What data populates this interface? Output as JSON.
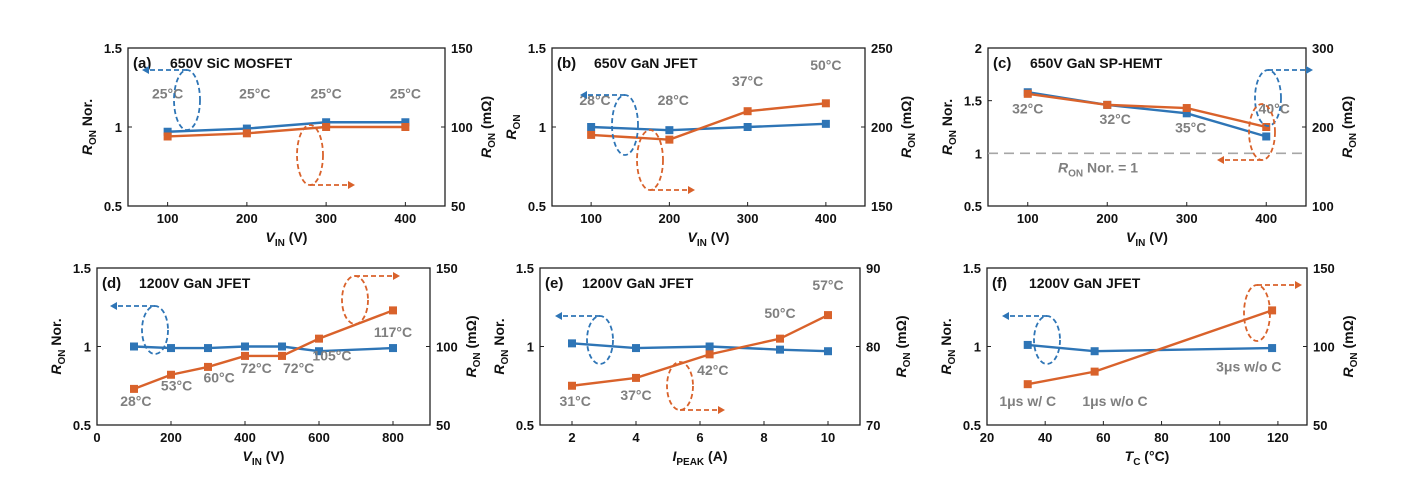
{
  "colors": {
    "left_series": "#2e75b6",
    "right_series": "#d9622b",
    "annotation": "#7f7f7f",
    "reference": "#a6a6a6"
  },
  "chart_data": [
    {
      "panel": "(a)",
      "title": "650V SiC MOSFET",
      "type": "line",
      "xlabel": "V",
      "xlabel_sub": "IN",
      "xlabel_tail": " (V)",
      "xlim": [
        50,
        450
      ],
      "xticks": [
        100,
        200,
        300,
        400
      ],
      "ylabel_left": "R",
      "ylabel_left_sub": "ON",
      "ylabel_left_tail": " Nor.",
      "ylim_left": [
        0.5,
        1.5
      ],
      "yticks_left": [
        "0.5",
        "1",
        "1.5"
      ],
      "ylabel_right": "R",
      "ylabel_right_sub": "ON",
      "ylabel_right_tail": " (mΩ)",
      "ylim_right": [
        50,
        150
      ],
      "yticks_right": [
        "50",
        "100",
        "150"
      ],
      "series_left": {
        "x": [
          100,
          200,
          300,
          400
        ],
        "y": [
          0.97,
          0.99,
          1.03,
          1.03
        ]
      },
      "series_right": {
        "x": [
          100,
          200,
          300,
          400
        ],
        "y": [
          94,
          96,
          100,
          100
        ]
      },
      "annotations": [
        {
          "text": "25°C",
          "x": 100,
          "y": 1.18
        },
        {
          "text": "25°C",
          "x": 210,
          "y": 1.18
        },
        {
          "text": "25°C",
          "x": 300,
          "y": 1.18
        },
        {
          "text": "25°C",
          "x": 400,
          "y": 1.18
        }
      ]
    },
    {
      "panel": "(b)",
      "title": "650V GaN JFET",
      "type": "line",
      "xlabel": "V",
      "xlabel_sub": "IN",
      "xlabel_tail": " (V)",
      "xlim": [
        50,
        450
      ],
      "xticks": [
        100,
        200,
        300,
        400
      ],
      "ylabel_left": "R",
      "ylabel_left_sub": "ON",
      "ylabel_left_tail": "",
      "ylim_left": [
        0.5,
        1.5
      ],
      "yticks_left": [
        "0.5",
        "1",
        "1.5"
      ],
      "ylabel_right": "R",
      "ylabel_right_sub": "ON",
      "ylabel_right_tail": " (mΩ)",
      "ylim_right": [
        150,
        250
      ],
      "yticks_right": [
        "150",
        "200",
        "250"
      ],
      "series_left": {
        "x": [
          100,
          200,
          300,
          400
        ],
        "y": [
          1.0,
          0.98,
          1.0,
          1.02
        ]
      },
      "series_right": {
        "x": [
          100,
          200,
          300,
          400
        ],
        "y": [
          195,
          192,
          210,
          215
        ]
      },
      "annotations": [
        {
          "text": "28°C",
          "x": 105,
          "y": 1.14
        },
        {
          "text": "28°C",
          "x": 205,
          "y": 1.14
        },
        {
          "text": "37°C",
          "x": 300,
          "y": 1.26
        },
        {
          "text": "50°C",
          "x": 400,
          "y": 1.36
        }
      ]
    },
    {
      "panel": "(c)",
      "title": "650V GaN SP-HEMT",
      "type": "line",
      "xlabel": "V",
      "xlabel_sub": "IN",
      "xlabel_tail": " (V)",
      "xlim": [
        50,
        450
      ],
      "xticks": [
        100,
        200,
        300,
        400
      ],
      "ylabel_left": "R",
      "ylabel_left_sub": "ON",
      "ylabel_left_tail": " Nor.",
      "ylim_left": [
        0.5,
        2
      ],
      "yticks_left": [
        "0.5",
        "1",
        "1.5",
        "2"
      ],
      "ylabel_right": "R",
      "ylabel_right_sub": "ON",
      "ylabel_right_tail": " (mΩ)",
      "ylim_right": [
        100,
        300
      ],
      "yticks_right": [
        "100",
        "200",
        "300"
      ],
      "series_left": {
        "x": [
          100,
          200,
          300,
          400
        ],
        "y": [
          1.58,
          1.46,
          1.38,
          1.16
        ]
      },
      "series_right": {
        "x": [
          100,
          200,
          300,
          400
        ],
        "y": [
          242,
          228,
          224,
          200
        ]
      },
      "reference_line": {
        "y": 1,
        "label": "R",
        "label_sub": "ON",
        "label_tail": " Nor. = 1"
      },
      "annotations": [
        {
          "text": "32°C",
          "x": 100,
          "y": 1.38
        },
        {
          "text": "32°C",
          "x": 210,
          "y": 1.28
        },
        {
          "text": "35°C",
          "x": 305,
          "y": 1.2
        },
        {
          "text": "40°C",
          "x": 410,
          "y": 1.38
        }
      ]
    },
    {
      "panel": "(d)",
      "title": "1200V GaN JFET",
      "type": "line",
      "xlabel": "V",
      "xlabel_sub": "IN",
      "xlabel_tail": " (V)",
      "xlim": [
        0,
        900
      ],
      "xticks": [
        0,
        200,
        400,
        600,
        800
      ],
      "ylabel_left": "R",
      "ylabel_left_sub": "ON",
      "ylabel_left_tail": " Nor.",
      "ylim_left": [
        0.5,
        1.5
      ],
      "yticks_left": [
        "0.5",
        "1",
        "1.5"
      ],
      "ylabel_right": "R",
      "ylabel_right_sub": "ON",
      "ylabel_right_tail": " (mΩ)",
      "ylim_right": [
        50,
        150
      ],
      "yticks_right": [
        "50",
        "100",
        "150"
      ],
      "series_left": {
        "x": [
          100,
          200,
          300,
          400,
          500,
          600,
          800
        ],
        "y": [
          1.0,
          0.99,
          0.99,
          1.0,
          1.0,
          0.97,
          0.99
        ]
      },
      "series_right": {
        "x": [
          100,
          200,
          300,
          400,
          500,
          600,
          800
        ],
        "y": [
          73,
          82,
          87,
          94,
          94,
          105,
          123
        ]
      },
      "annotations": [
        {
          "text": "28°C",
          "x": 105,
          "y": 0.62
        },
        {
          "text": "53°C",
          "x": 215,
          "y": 0.72
        },
        {
          "text": "60°C",
          "x": 330,
          "y": 0.77
        },
        {
          "text": "72°C",
          "x": 430,
          "y": 0.83
        },
        {
          "text": "72°C",
          "x": 545,
          "y": 0.83
        },
        {
          "text": "105°C",
          "x": 635,
          "y": 0.91
        },
        {
          "text": "117°C",
          "x": 800,
          "y": 1.06
        }
      ]
    },
    {
      "panel": "(e)",
      "title": "1200V GaN JFET",
      "type": "line",
      "xlabel": "I",
      "xlabel_sub": "PEAK",
      "xlabel_tail": " (A)",
      "xlim": [
        1,
        11
      ],
      "xticks": [
        2,
        4,
        6,
        8,
        10
      ],
      "ylabel_left": "R",
      "ylabel_left_sub": "ON",
      "ylabel_left_tail": " Nor.",
      "ylim_left": [
        0.5,
        1.5
      ],
      "yticks_left": [
        "0.5",
        "1",
        "1.5"
      ],
      "ylabel_right": "R",
      "ylabel_right_sub": "ON",
      "ylabel_right_tail": " (mΩ)",
      "ylim_right": [
        70,
        90
      ],
      "yticks_right": [
        "70",
        "80",
        "90"
      ],
      "series_left": {
        "x": [
          2,
          4,
          6.3,
          8.5,
          10
        ],
        "y": [
          1.02,
          0.99,
          1.0,
          0.98,
          0.97
        ]
      },
      "series_right": {
        "x": [
          2,
          4,
          6.3,
          8.5,
          10
        ],
        "y": [
          75,
          76,
          79,
          81,
          84
        ]
      },
      "annotations": [
        {
          "text": "31°C",
          "x": 2.1,
          "y": 0.62
        },
        {
          "text": "37°C",
          "x": 4.0,
          "y": 0.66
        },
        {
          "text": "42°C",
          "x": 6.4,
          "y": 0.82
        },
        {
          "text": "50°C",
          "x": 8.5,
          "y": 1.18
        },
        {
          "text": "57°C",
          "x": 10,
          "y": 1.36
        }
      ]
    },
    {
      "panel": "(f)",
      "title": "1200V GaN JFET",
      "type": "line",
      "xlabel": "T",
      "xlabel_sub": "C",
      "xlabel_tail": " (°C)",
      "xlim": [
        20,
        130
      ],
      "xticks": [
        20,
        40,
        60,
        80,
        100,
        120
      ],
      "ylabel_left": "R",
      "ylabel_left_sub": "ON",
      "ylabel_left_tail": " Nor.",
      "ylim_left": [
        0.5,
        1.5
      ],
      "yticks_left": [
        "0.5",
        "1",
        "1.5"
      ],
      "ylabel_right": "R",
      "ylabel_right_sub": "ON",
      "ylabel_right_tail": " (mΩ)",
      "ylim_right": [
        50,
        150
      ],
      "yticks_right": [
        "50",
        "100",
        "150"
      ],
      "series_left": {
        "x": [
          34,
          57,
          118
        ],
        "y": [
          1.01,
          0.97,
          0.99
        ]
      },
      "series_right": {
        "x": [
          34,
          57,
          118
        ],
        "y": [
          76,
          84,
          123
        ]
      },
      "annotations": [
        {
          "text": "1μs w/ C",
          "x": 34,
          "y": 0.62
        },
        {
          "text": "1μs w/o C",
          "x": 64,
          "y": 0.62
        },
        {
          "text": "3μs w/o C",
          "x": 110,
          "y": 0.84
        }
      ]
    }
  ]
}
